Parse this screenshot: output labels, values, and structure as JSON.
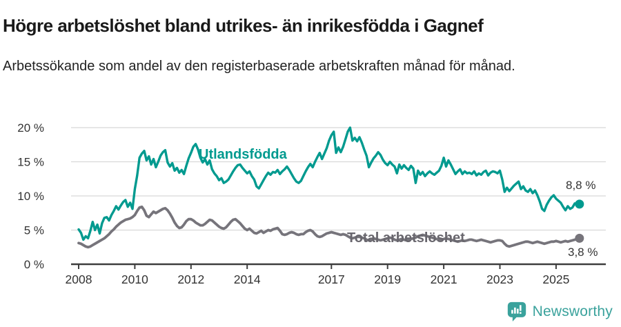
{
  "header": {
    "title": "Högre arbetslöshet bland utrikes- än inrikesfödda i Gagnef",
    "subtitle": "Arbetssökande som andel av den registerbaserade arbetskraften månad för månad."
  },
  "chart_data": {
    "type": "line",
    "x_start_year": 2008,
    "x_end": "2025-11",
    "points_per_year": 12,
    "ylim": [
      0,
      20
    ],
    "grid": true,
    "legend_position": "inline-on-lines",
    "y_ticks": [
      "0 %",
      "5 %",
      "10 %",
      "15 %",
      "20 %"
    ],
    "y_tick_values": [
      0,
      5,
      10,
      15,
      20
    ],
    "x_tick_years": [
      2008,
      2010,
      2012,
      2014,
      2017,
      2019,
      2021,
      2023,
      2025
    ],
    "series": [
      {
        "name": "Utlandsfödda",
        "color": "#009a8f",
        "end_label": "8,8 %",
        "end_value": 8.8,
        "values": [
          5.1,
          4.6,
          3.6,
          4.1,
          3.8,
          4.9,
          6.2,
          5.0,
          5.8,
          4.5,
          6.0,
          6.8,
          6.9,
          6.4,
          7.2,
          7.8,
          8.5,
          8.0,
          8.6,
          9.1,
          9.4,
          8.4,
          9.0,
          8.1,
          11.0,
          13.0,
          15.6,
          16.2,
          16.6,
          15.2,
          15.8,
          14.6,
          15.4,
          14.2,
          15.0,
          15.9,
          16.4,
          16.7,
          14.9,
          14.3,
          14.8,
          13.7,
          14.1,
          13.4,
          13.8,
          13.2,
          14.4,
          15.5,
          16.3,
          17.2,
          17.6,
          16.8,
          15.6,
          14.9,
          15.4,
          14.6,
          15.2,
          13.9,
          13.3,
          12.9,
          12.3,
          12.6,
          11.9,
          12.1,
          12.4,
          13.0,
          13.6,
          14.1,
          14.5,
          14.6,
          14.1,
          13.7,
          13.3,
          13.6,
          12.9,
          12.4,
          11.4,
          11.1,
          11.7,
          12.3,
          12.9,
          13.4,
          13.1,
          13.5,
          13.4,
          13.8,
          13.2,
          13.6,
          13.9,
          14.3,
          13.8,
          13.2,
          12.6,
          12.1,
          11.9,
          12.2,
          12.9,
          13.6,
          14.2,
          14.7,
          14.2,
          15.0,
          15.7,
          16.3,
          15.4,
          16.2,
          17.0,
          18.1,
          18.9,
          19.4,
          16.3,
          17.1,
          16.4,
          17.2,
          18.3,
          19.4,
          20.0,
          18.1,
          18.5,
          18.0,
          18.6,
          17.8,
          16.8,
          15.9,
          14.2,
          14.9,
          15.5,
          15.9,
          16.4,
          16.0,
          15.3,
          14.8,
          14.5,
          15.0,
          14.6,
          14.3,
          13.3,
          14.6,
          14.0,
          14.5,
          14.1,
          13.8,
          14.4,
          14.0,
          11.9,
          13.7,
          13.1,
          13.5,
          12.9,
          13.3,
          13.6,
          13.3,
          13.1,
          13.4,
          13.7,
          14.4,
          15.6,
          14.3,
          15.2,
          14.6,
          13.9,
          13.2,
          13.6,
          13.9,
          13.2,
          13.6,
          13.3,
          13.4,
          13.2,
          13.6,
          13.0,
          13.3,
          13.1,
          13.5,
          13.7,
          13.0,
          13.4,
          13.6,
          13.5,
          13.3,
          13.7,
          12.4,
          10.6,
          11.2,
          10.7,
          11.1,
          11.5,
          11.8,
          12.1,
          11.0,
          11.4,
          10.8,
          10.6,
          11.0,
          10.4,
          10.8,
          10.1,
          9.2,
          8.1,
          7.8,
          8.7,
          9.3,
          9.8,
          10.1,
          9.6,
          9.3,
          9.0,
          8.4,
          7.9,
          8.5,
          8.1,
          8.3,
          8.9,
          8.6,
          8.8
        ]
      },
      {
        "name": "Total arbetslöshet",
        "color": "#76747b",
        "end_label": "3,8 %",
        "end_value": 3.8,
        "values": [
          3.1,
          3.0,
          2.8,
          2.6,
          2.5,
          2.6,
          2.8,
          3.0,
          3.2,
          3.4,
          3.6,
          3.8,
          4.1,
          4.4,
          4.8,
          5.1,
          5.5,
          5.8,
          6.1,
          6.3,
          6.5,
          6.6,
          6.7,
          6.9,
          7.2,
          7.8,
          8.3,
          8.4,
          7.9,
          7.1,
          6.9,
          7.3,
          7.7,
          7.5,
          7.7,
          7.9,
          8.1,
          8.2,
          7.9,
          7.4,
          6.8,
          6.1,
          5.6,
          5.3,
          5.4,
          5.8,
          6.3,
          6.6,
          6.6,
          6.4,
          6.1,
          5.9,
          5.7,
          5.7,
          5.9,
          6.2,
          6.5,
          6.4,
          6.1,
          5.8,
          5.5,
          5.3,
          5.2,
          5.4,
          5.8,
          6.2,
          6.5,
          6.6,
          6.3,
          6.0,
          5.6,
          5.2,
          5.0,
          5.2,
          4.9,
          4.6,
          4.5,
          4.7,
          4.9,
          4.6,
          4.8,
          5.0,
          4.9,
          5.1,
          5.2,
          5.3,
          4.9,
          4.4,
          4.3,
          4.4,
          4.6,
          4.7,
          4.6,
          4.4,
          4.3,
          4.4,
          4.4,
          4.7,
          4.9,
          5.0,
          4.8,
          4.4,
          4.1,
          4.0,
          4.1,
          4.3,
          4.5,
          4.6,
          4.7,
          4.6,
          4.5,
          4.4,
          4.3,
          4.4,
          4.3,
          4.1,
          3.9,
          3.8,
          3.9,
          4.0,
          4.0,
          3.9,
          3.8,
          3.6,
          3.5,
          3.6,
          3.8,
          3.7,
          3.6,
          3.5,
          3.6,
          3.7,
          3.8,
          3.9,
          3.8,
          3.6,
          3.5,
          3.6,
          3.7,
          3.6,
          3.5,
          3.6,
          3.7,
          3.8,
          3.9,
          4.1,
          4.2,
          4.3,
          4.2,
          4.1,
          4.0,
          3.9,
          3.8,
          3.7,
          3.6,
          3.6,
          3.7,
          3.8,
          3.7,
          3.6,
          3.5,
          3.4,
          3.3,
          3.4,
          3.5,
          3.4,
          3.5,
          3.6,
          3.6,
          3.5,
          3.4,
          3.5,
          3.6,
          3.5,
          3.4,
          3.3,
          3.2,
          3.3,
          3.4,
          3.5,
          3.5,
          3.4,
          3.0,
          2.7,
          2.6,
          2.7,
          2.8,
          2.9,
          3.0,
          3.1,
          3.2,
          3.3,
          3.3,
          3.2,
          3.1,
          3.2,
          3.3,
          3.2,
          3.1,
          3.0,
          3.1,
          3.2,
          3.3,
          3.3,
          3.4,
          3.3,
          3.2,
          3.3,
          3.4,
          3.3,
          3.4,
          3.5,
          3.6,
          3.7,
          3.8
        ]
      }
    ]
  },
  "footer": {
    "brand": "Newsworthy",
    "brand_color": "#3aa29c"
  },
  "colors": {
    "series_foreign_born": "#009a8f",
    "series_total": "#76747b",
    "gridline": "#d8d8d8",
    "axis": "#3d3d3d",
    "text": "#1a1a1a"
  }
}
